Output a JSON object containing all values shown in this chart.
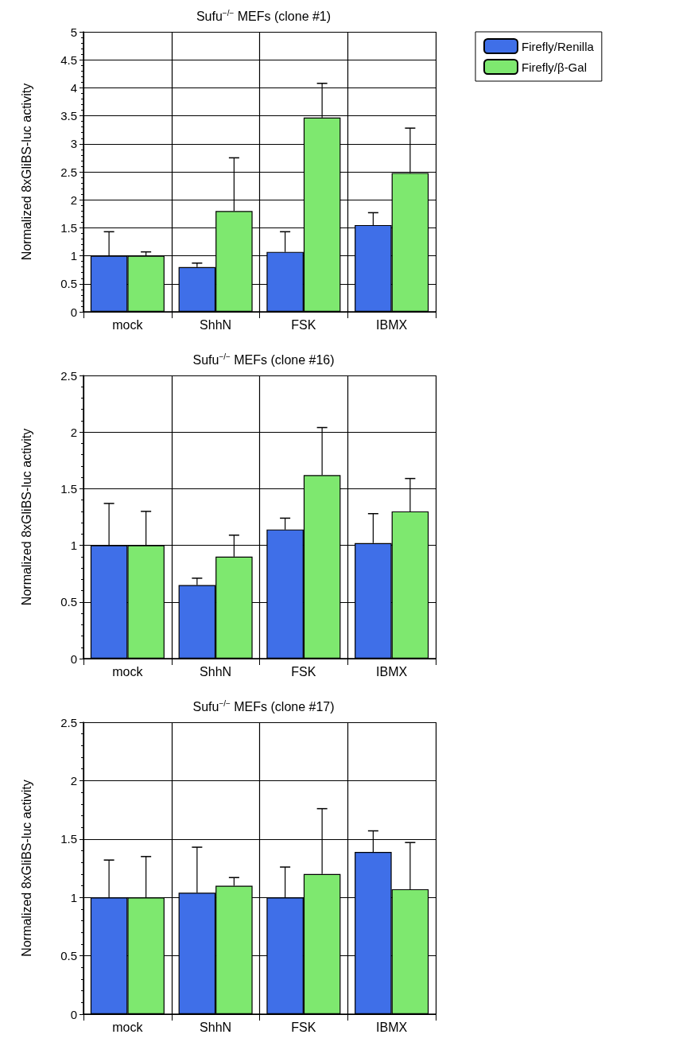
{
  "chart_data": [
    {
      "type": "bar",
      "title": "Sufu$^{−/−}$ MEFs (clone #1)",
      "ylabel": "Normalized 8xGliBS-luc activity",
      "categories": [
        "mock",
        "ShhN",
        "FSK",
        "IBMX"
      ],
      "series": [
        {
          "name": "Firefly/Renilla",
          "color": "#3f6fe8",
          "values": [
            1.0,
            0.8,
            1.07,
            1.55
          ],
          "errors": [
            [
              1.0,
              1.43
            ],
            [
              0.8,
              0.87
            ],
            [
              1.07,
              1.43
            ],
            [
              1.55,
              1.77
            ]
          ]
        },
        {
          "name": "Firefly/β-Gal",
          "color": "#7ee86f",
          "values": [
            1.0,
            1.8,
            3.47,
            2.48
          ],
          "errors": [
            [
              1.0,
              1.07
            ],
            [
              1.8,
              2.75
            ],
            [
              3.47,
              4.08
            ],
            [
              2.48,
              3.28
            ]
          ]
        }
      ],
      "ylim": [
        0,
        5
      ],
      "yticks": [
        0,
        0.5,
        1,
        1.5,
        2,
        2.5,
        3,
        3.5,
        4,
        4.5,
        5
      ],
      "grid": true,
      "legend": "top right"
    },
    {
      "type": "bar",
      "title": "Sufu$^{−/−}$ MEFs (clone #16)",
      "ylabel": "Normalized 8xGliBS-luc activity",
      "categories": [
        "mock",
        "ShhN",
        "FSK",
        "IBMX"
      ],
      "series": [
        {
          "color": "#3f6fe8",
          "values": [
            1.0,
            0.65,
            1.14,
            1.02
          ],
          "errors": [
            [
              1.0,
              1.37
            ],
            [
              0.65,
              0.71
            ],
            [
              1.14,
              1.24
            ],
            [
              1.02,
              1.28
            ]
          ]
        },
        {
          "color": "#7ee86f",
          "values": [
            1.0,
            0.9,
            1.62,
            1.3
          ],
          "errors": [
            [
              1.0,
              1.3
            ],
            [
              0.9,
              1.09
            ],
            [
              1.62,
              2.04
            ],
            [
              1.3,
              1.59
            ]
          ]
        }
      ],
      "ylim": [
        0,
        2.5
      ],
      "yticks": [
        0,
        0.5,
        1,
        1.5,
        2,
        2.5
      ],
      "grid": true
    },
    {
      "type": "bar",
      "title": "Sufu$^{−/−}$ MEFs (clone #17)",
      "ylabel": "Normalized 8xGliBS-luc activity",
      "categories": [
        "mock",
        "ShhN",
        "FSK",
        "IBMX"
      ],
      "series": [
        {
          "color": "#3f6fe8",
          "values": [
            1.0,
            1.04,
            1.0,
            1.39
          ],
          "errors": [
            [
              1.0,
              1.32
            ],
            [
              1.04,
              1.43
            ],
            [
              1.0,
              1.26
            ],
            [
              1.39,
              1.57
            ]
          ]
        },
        {
          "color": "#7ee86f",
          "values": [
            1.0,
            1.1,
            1.2,
            1.07
          ],
          "errors": [
            [
              1.0,
              1.35
            ],
            [
              1.1,
              1.17
            ],
            [
              1.2,
              1.76
            ],
            [
              1.07,
              1.47
            ]
          ]
        }
      ],
      "ylim": [
        0,
        2.5
      ],
      "yticks": [
        0,
        0.5,
        1,
        1.5,
        2,
        2.5
      ],
      "grid": true
    }
  ]
}
